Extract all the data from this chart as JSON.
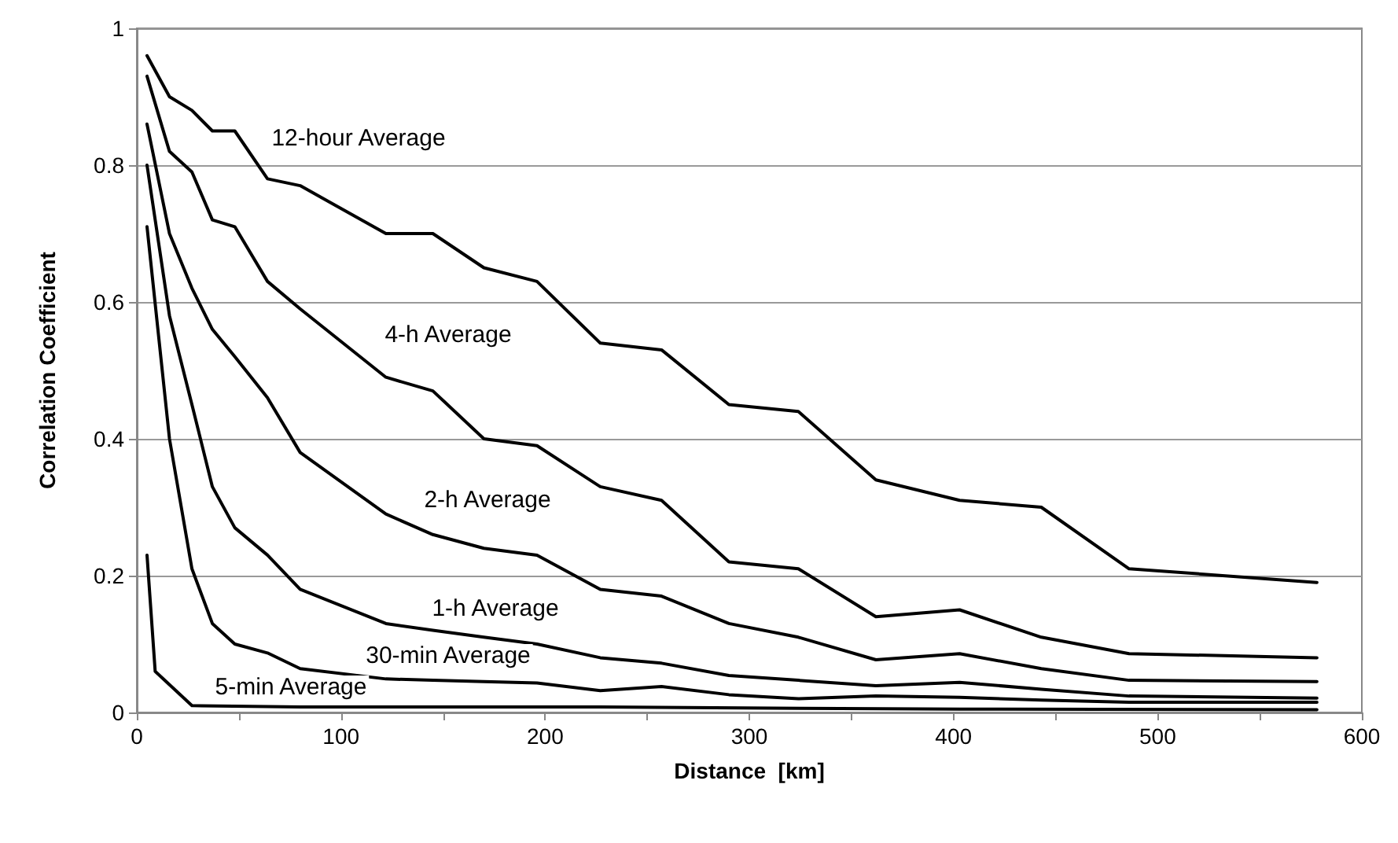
{
  "chart_data": {
    "type": "line",
    "xlabel": "Distance  [km]",
    "ylabel": "Correlation Coefficient",
    "x": [
      5,
      16,
      27,
      37,
      48,
      64,
      80,
      122,
      145,
      170,
      196,
      227,
      257,
      290,
      324,
      362,
      403,
      443,
      486,
      578
    ],
    "series": [
      {
        "name": "12-hour Average",
        "color": "#000000",
        "values": [
          0.96,
          0.9,
          0.88,
          0.85,
          0.85,
          0.78,
          0.77,
          0.7,
          0.7,
          0.65,
          0.63,
          0.54,
          0.53,
          0.45,
          0.44,
          0.34,
          0.31,
          0.3,
          0.21,
          0.19
        ]
      },
      {
        "name": "4-h Average",
        "color": "#000000",
        "values": [
          0.93,
          0.82,
          0.79,
          0.72,
          0.71,
          0.63,
          0.59,
          0.49,
          0.47,
          0.4,
          0.39,
          0.33,
          0.31,
          0.22,
          0.21,
          0.14,
          0.15,
          0.11,
          0.086,
          0.08
        ]
      },
      {
        "name": "2-h Average",
        "color": "#000000",
        "values": [
          0.86,
          0.7,
          0.62,
          0.56,
          0.52,
          0.46,
          0.38,
          0.29,
          0.26,
          0.24,
          0.23,
          0.18,
          0.17,
          0.13,
          0.11,
          0.077,
          0.086,
          0.064,
          0.047,
          0.045
        ]
      },
      {
        "name": "1-h Average",
        "color": "#000000",
        "values": [
          0.8,
          0.58,
          0.45,
          0.33,
          0.27,
          0.23,
          0.18,
          0.13,
          0.12,
          0.11,
          0.1,
          0.08,
          0.072,
          0.054,
          0.047,
          0.039,
          0.044,
          0.034,
          0.024,
          0.021
        ]
      },
      {
        "name": "30-min Average",
        "color": "#000000",
        "values": [
          0.71,
          0.4,
          0.21,
          0.13,
          0.1,
          0.087,
          0.064,
          0.049,
          0.047,
          0.045,
          0.043,
          0.032,
          0.038,
          0.026,
          0.02,
          0.024,
          0.022,
          0.018,
          0.015,
          0.015
        ]
      },
      {
        "name": "5-min Average",
        "color": "#000000",
        "x": [
          5,
          9,
          27,
          80,
          145,
          227,
          325,
          403,
          578
        ],
        "values": [
          0.23,
          0.06,
          0.01,
          0.008,
          0.008,
          0.008,
          0.006,
          0.005,
          0.004
        ]
      }
    ],
    "xlim": [
      0,
      600
    ],
    "xticks": [
      0,
      {
        "value": 50,
        "label": null
      },
      100,
      {
        "value": 150,
        "label": null
      },
      200,
      {
        "value": 250,
        "label": null
      },
      300,
      {
        "value": 350,
        "label": null
      },
      400,
      {
        "value": 450,
        "label": null
      },
      500,
      {
        "value": 550,
        "label": null
      },
      600
    ],
    "ylim": [
      0,
      1
    ],
    "yticks": [
      0,
      0.2,
      0.4,
      0.6,
      0.8,
      1
    ],
    "grid": "y",
    "marker": "none",
    "line_style": "solid"
  }
}
